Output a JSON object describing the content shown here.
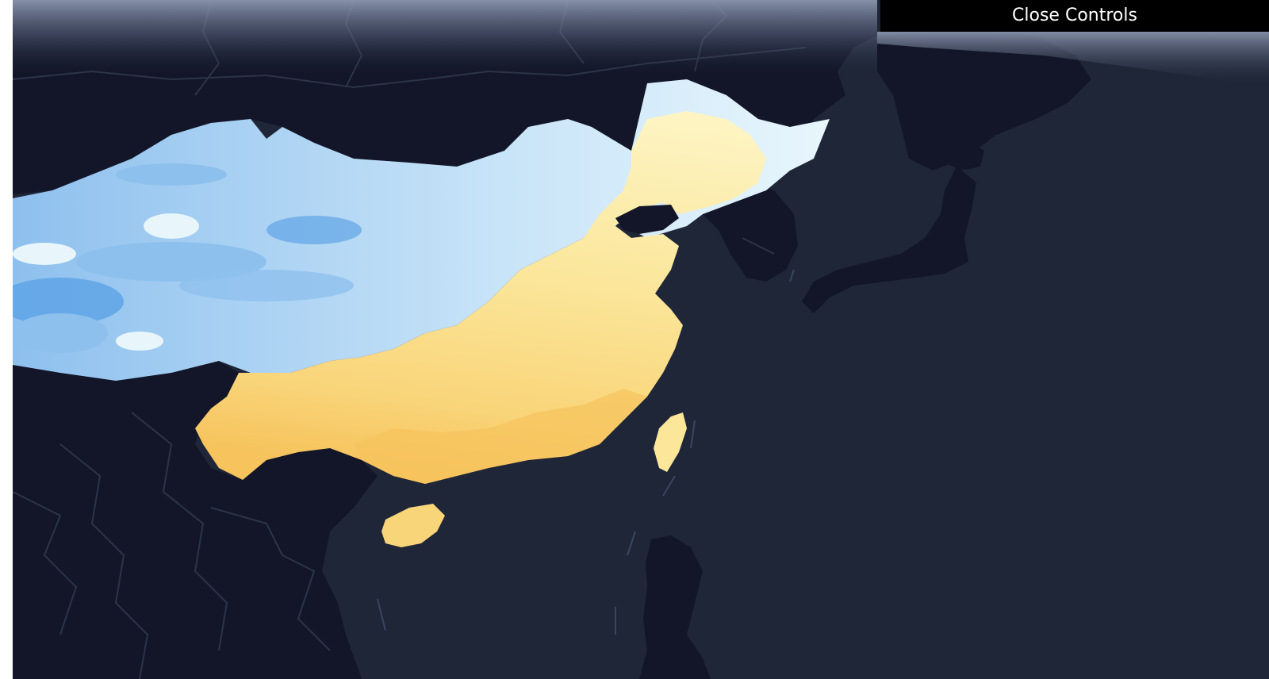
{
  "controls": {
    "close_label": "Close Controls"
  },
  "map": {
    "colors": {
      "ocean": "#1f2638",
      "land_outside": "#121628",
      "borders": "#2c3447",
      "sky_haze": "#8894ad",
      "cold_deep": "#5fa4e6",
      "cold_mid": "#8ec0ee",
      "cold_light": "#c8e4f8",
      "cold_pale": "#e8f6fc",
      "warm_pale": "#fdf4c2",
      "warm_light": "#fbe69a",
      "warm_mid": "#f9d57a",
      "warm_deep": "#f6c35c"
    }
  }
}
